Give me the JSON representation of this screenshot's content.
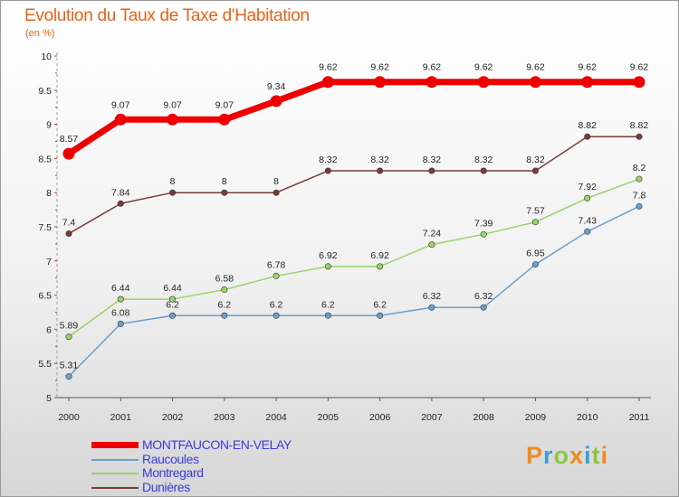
{
  "header": {
    "title": "Evolution du Taux de Taxe d'Habitation",
    "unit": "(en %)"
  },
  "logo": {
    "text": "Proxiti",
    "letters": [
      {
        "ch": "P",
        "color": "#f08a1e"
      },
      {
        "ch": "r",
        "color": "#3aa0d8"
      },
      {
        "ch": "o",
        "color": "#8cc63f"
      },
      {
        "ch": "x",
        "color": "#f08a1e"
      },
      {
        "ch": "i",
        "color": "#3aa0d8"
      },
      {
        "ch": "t",
        "color": "#8cc63f"
      },
      {
        "ch": "i",
        "color": "#f08a1e"
      }
    ]
  },
  "chart_data": {
    "type": "line",
    "title": "Evolution du Taux de Taxe d'Habitation",
    "ylabel": "(en %)",
    "xlabel": "",
    "x": [
      "2000",
      "2001",
      "2002",
      "2003",
      "2004",
      "2005",
      "2006",
      "2007",
      "2008",
      "2009",
      "2010",
      "2011"
    ],
    "ylim": [
      5,
      10
    ],
    "yticks": [
      "5",
      "5.5",
      "6",
      "6.5",
      "7",
      "7.5",
      "8",
      "8.5",
      "9",
      "9.5",
      "10"
    ],
    "grid": false,
    "legend_position": "bottom-left",
    "series": [
      {
        "name": "MONTFAUCON-EN-VELAY",
        "color": "#ee0000",
        "values": [
          8.57,
          9.07,
          9.07,
          9.07,
          9.34,
          9.62,
          9.62,
          9.62,
          9.62,
          9.62,
          9.62,
          9.62
        ],
        "labels": [
          "8.57",
          "9.07",
          "9.07",
          "9.07",
          "9.34",
          "9.62",
          "9.62",
          "9.62",
          "9.62",
          "9.62",
          "9.62",
          "9.62"
        ]
      },
      {
        "name": "Raucoules",
        "color": "#6a9fd1",
        "values": [
          5.31,
          6.08,
          6.2,
          6.2,
          6.2,
          6.2,
          6.2,
          6.32,
          6.32,
          6.95,
          7.43,
          7.8
        ],
        "labels": [
          "5.31",
          "6.08",
          "6.2",
          "6.2",
          "6.2",
          "6.2",
          "6.2",
          "6.32",
          "6.32",
          "6.95",
          "7.43",
          "7.8"
        ]
      },
      {
        "name": "Montregard",
        "color": "#9ad36a",
        "values": [
          5.89,
          6.44,
          6.44,
          6.58,
          6.78,
          6.92,
          6.92,
          7.24,
          7.39,
          7.57,
          7.92,
          8.2
        ],
        "labels": [
          "5.89",
          "6.44",
          "6.44",
          "6.58",
          "6.78",
          "6.92",
          "6.92",
          "7.24",
          "7.39",
          "7.57",
          "7.92",
          "8.2"
        ]
      },
      {
        "name": "Dunières",
        "color": "#7a3a3a",
        "values": [
          7.4,
          7.84,
          8,
          8,
          8,
          8.32,
          8.32,
          8.32,
          8.32,
          8.32,
          8.82,
          8.82
        ],
        "labels": [
          "7.4",
          "7.84",
          "8",
          "8",
          "8",
          "8.32",
          "8.32",
          "8.32",
          "8.32",
          "8.32",
          "8.82",
          "8.82"
        ]
      }
    ]
  }
}
